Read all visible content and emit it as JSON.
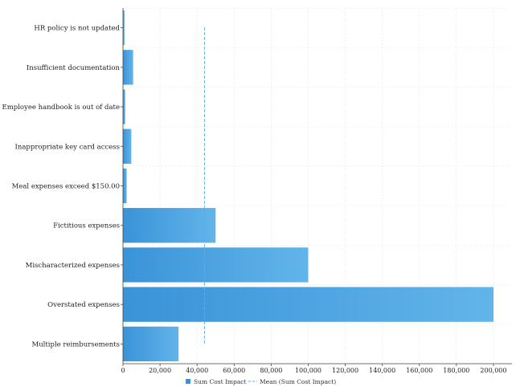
{
  "chart_data": {
    "type": "bar",
    "orientation": "horizontal",
    "categories": [
      "HR policy is not updated",
      "Insufficient documentation",
      "Employee handbook is out of date",
      "Inappropriate key card access",
      "Meal expenses exceed $150.00",
      "Fictitious expenses",
      "Mischaracterized expenses",
      "Overstated expenses",
      "Multiple reimbursements"
    ],
    "series": [
      {
        "name": "Sum Cost Impact",
        "values": [
          800,
          5500,
          1200,
          4500,
          2000,
          50000,
          100000,
          200000,
          30000
        ]
      }
    ],
    "mean": {
      "name": "Mean (Sum Cost Impact)",
      "value": 44000
    },
    "xlim": [
      0,
      210000
    ],
    "xticks": [
      0,
      20000,
      40000,
      60000,
      80000,
      100000,
      120000,
      140000,
      160000,
      180000,
      200000
    ],
    "xtick_labels": [
      "0",
      "20,000",
      "40,000",
      "60,000",
      "80,000",
      "100,000",
      "120,000",
      "140,000",
      "160,000",
      "180,000",
      "200,000"
    ],
    "grid": true,
    "legend_position": "bottom",
    "colors": {
      "bar_start": "#3a93d8",
      "bar_end": "#62b5ea",
      "mean_line": "#5aaee8"
    }
  }
}
